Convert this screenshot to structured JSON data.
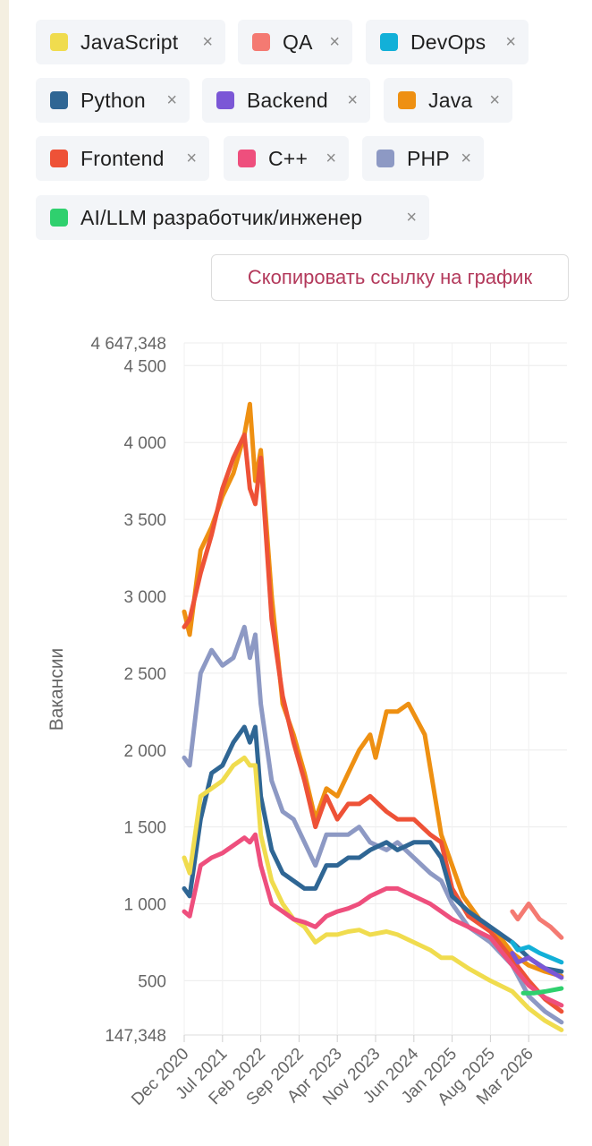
{
  "tags": [
    {
      "label": "JavaScript",
      "color": "#f0dc4e",
      "remove": "×"
    },
    {
      "label": "QA",
      "color": "#f47a72",
      "remove": "×"
    },
    {
      "label": "DevOps",
      "color": "#12b0d8",
      "remove": "×"
    },
    {
      "label": "Python",
      "color": "#2f6694",
      "remove": "×"
    },
    {
      "label": "Backend",
      "color": "#7b57d6",
      "remove": "×"
    },
    {
      "label": "Java",
      "color": "#ee9012",
      "remove": "×"
    },
    {
      "label": "Frontend",
      "color": "#ee5237",
      "remove": "×"
    },
    {
      "label": "C++",
      "color": "#ee4f7d",
      "remove": "×"
    },
    {
      "label": "PHP",
      "color": "#8d99c4",
      "remove": "×"
    },
    {
      "label": "AI/LLM разработчик/инженер",
      "color": "#2fd06e",
      "remove": "×"
    }
  ],
  "copy_button": "Скопировать ссылку на график",
  "chart_data": {
    "type": "line",
    "ylabel": "Вакансии",
    "ylim": [
      147.348,
      4647.348
    ],
    "y_ticks": [
      "147,348",
      "500",
      "1 000",
      "1 500",
      "2 000",
      "2 500",
      "3 000",
      "3 500",
      "4 000",
      "4 500",
      "4 647,348"
    ],
    "y_tick_values": [
      147.348,
      500,
      1000,
      1500,
      2000,
      2500,
      3000,
      3500,
      4000,
      4500,
      4647.348
    ],
    "x_ticks": [
      "Dec 2020",
      "Jul 2021",
      "Feb 2022",
      "Sep 2022",
      "Apr 2023",
      "Nov 2023",
      "Jun 2024",
      "Jan 2025",
      "Aug 2025",
      "Mar 2026"
    ],
    "x_range": [
      "2020-12",
      "2026-10"
    ],
    "grid": true,
    "series": [
      {
        "name": "Java",
        "color": "#ee9012",
        "start": "2020-12",
        "points": [
          [
            "2020-12",
            2900
          ],
          [
            "2021-01",
            2750
          ],
          [
            "2021-03",
            3300
          ],
          [
            "2021-05",
            3450
          ],
          [
            "2021-07",
            3650
          ],
          [
            "2021-09",
            3800
          ],
          [
            "2021-11",
            4050
          ],
          [
            "2021-12",
            4250
          ],
          [
            "2022-01",
            3750
          ],
          [
            "2022-02",
            3950
          ],
          [
            "2022-04",
            3000
          ],
          [
            "2022-06",
            2300
          ],
          [
            "2022-08",
            2100
          ],
          [
            "2022-10",
            1850
          ],
          [
            "2022-12",
            1550
          ],
          [
            "2023-02",
            1750
          ],
          [
            "2023-04",
            1700
          ],
          [
            "2023-06",
            1850
          ],
          [
            "2023-08",
            2000
          ],
          [
            "2023-10",
            2100
          ],
          [
            "2023-11",
            1950
          ],
          [
            "2024-01",
            2250
          ],
          [
            "2024-03",
            2250
          ],
          [
            "2024-05",
            2300
          ],
          [
            "2024-08",
            2100
          ],
          [
            "2024-11",
            1450
          ],
          [
            "2025-01",
            1250
          ],
          [
            "2025-03",
            1050
          ],
          [
            "2025-06",
            900
          ],
          [
            "2025-09",
            820
          ],
          [
            "2025-12",
            680
          ],
          [
            "2026-03",
            600
          ],
          [
            "2026-06",
            560
          ],
          [
            "2026-09",
            530
          ]
        ]
      },
      {
        "name": "Frontend",
        "color": "#ee5237",
        "start": "2020-12",
        "points": [
          [
            "2020-12",
            2800
          ],
          [
            "2021-01",
            2850
          ],
          [
            "2021-03",
            3150
          ],
          [
            "2021-05",
            3400
          ],
          [
            "2021-07",
            3700
          ],
          [
            "2021-09",
            3900
          ],
          [
            "2021-11",
            4050
          ],
          [
            "2021-12",
            3700
          ],
          [
            "2022-01",
            3600
          ],
          [
            "2022-02",
            3900
          ],
          [
            "2022-04",
            2850
          ],
          [
            "2022-06",
            2350
          ],
          [
            "2022-08",
            2050
          ],
          [
            "2022-10",
            1800
          ],
          [
            "2022-12",
            1500
          ],
          [
            "2023-02",
            1700
          ],
          [
            "2023-04",
            1550
          ],
          [
            "2023-06",
            1650
          ],
          [
            "2023-08",
            1650
          ],
          [
            "2023-10",
            1700
          ],
          [
            "2024-01",
            1600
          ],
          [
            "2024-03",
            1550
          ],
          [
            "2024-06",
            1550
          ],
          [
            "2024-09",
            1450
          ],
          [
            "2024-11",
            1400
          ],
          [
            "2025-01",
            1100
          ],
          [
            "2025-04",
            920
          ],
          [
            "2025-08",
            820
          ],
          [
            "2025-12",
            640
          ],
          [
            "2026-03",
            500
          ],
          [
            "2026-06",
            380
          ],
          [
            "2026-09",
            300
          ]
        ]
      },
      {
        "name": "PHP",
        "color": "#8d99c4",
        "start": "2020-12",
        "points": [
          [
            "2020-12",
            1950
          ],
          [
            "2021-01",
            1900
          ],
          [
            "2021-03",
            2500
          ],
          [
            "2021-05",
            2650
          ],
          [
            "2021-07",
            2550
          ],
          [
            "2021-09",
            2600
          ],
          [
            "2021-11",
            2800
          ],
          [
            "2021-12",
            2600
          ],
          [
            "2022-01",
            2750
          ],
          [
            "2022-02",
            2300
          ],
          [
            "2022-04",
            1800
          ],
          [
            "2022-06",
            1600
          ],
          [
            "2022-08",
            1550
          ],
          [
            "2022-10",
            1400
          ],
          [
            "2022-12",
            1250
          ],
          [
            "2023-02",
            1450
          ],
          [
            "2023-04",
            1450
          ],
          [
            "2023-06",
            1450
          ],
          [
            "2023-08",
            1500
          ],
          [
            "2023-10",
            1400
          ],
          [
            "2024-01",
            1350
          ],
          [
            "2024-03",
            1400
          ],
          [
            "2024-06",
            1300
          ],
          [
            "2024-09",
            1200
          ],
          [
            "2024-11",
            1150
          ],
          [
            "2025-01",
            1000
          ],
          [
            "2025-04",
            850
          ],
          [
            "2025-08",
            750
          ],
          [
            "2025-12",
            600
          ],
          [
            "2026-03",
            400
          ],
          [
            "2026-06",
            300
          ],
          [
            "2026-09",
            230
          ]
        ]
      },
      {
        "name": "Python",
        "color": "#2f6694",
        "start": "2020-12",
        "points": [
          [
            "2020-12",
            1100
          ],
          [
            "2021-01",
            1050
          ],
          [
            "2021-03",
            1550
          ],
          [
            "2021-05",
            1850
          ],
          [
            "2021-07",
            1900
          ],
          [
            "2021-09",
            2050
          ],
          [
            "2021-11",
            2150
          ],
          [
            "2021-12",
            2050
          ],
          [
            "2022-01",
            2150
          ],
          [
            "2022-02",
            1700
          ],
          [
            "2022-04",
            1350
          ],
          [
            "2022-06",
            1200
          ],
          [
            "2022-08",
            1150
          ],
          [
            "2022-10",
            1100
          ],
          [
            "2022-12",
            1100
          ],
          [
            "2023-02",
            1250
          ],
          [
            "2023-04",
            1250
          ],
          [
            "2023-06",
            1300
          ],
          [
            "2023-08",
            1300
          ],
          [
            "2023-10",
            1350
          ],
          [
            "2024-01",
            1400
          ],
          [
            "2024-03",
            1350
          ],
          [
            "2024-06",
            1400
          ],
          [
            "2024-09",
            1400
          ],
          [
            "2024-11",
            1300
          ],
          [
            "2025-01",
            1050
          ],
          [
            "2025-04",
            950
          ],
          [
            "2025-08",
            850
          ],
          [
            "2025-12",
            750
          ],
          [
            "2026-03",
            650
          ],
          [
            "2026-06",
            580
          ],
          [
            "2026-09",
            560
          ]
        ]
      },
      {
        "name": "JavaScript",
        "color": "#f0dc4e",
        "start": "2020-12",
        "points": [
          [
            "2020-12",
            1300
          ],
          [
            "2021-01",
            1200
          ],
          [
            "2021-03",
            1700
          ],
          [
            "2021-05",
            1750
          ],
          [
            "2021-07",
            1800
          ],
          [
            "2021-09",
            1900
          ],
          [
            "2021-11",
            1950
          ],
          [
            "2021-12",
            1900
          ],
          [
            "2022-01",
            1900
          ],
          [
            "2022-02",
            1450
          ],
          [
            "2022-04",
            1150
          ],
          [
            "2022-06",
            1000
          ],
          [
            "2022-08",
            900
          ],
          [
            "2022-10",
            850
          ],
          [
            "2022-12",
            750
          ],
          [
            "2023-02",
            800
          ],
          [
            "2023-04",
            800
          ],
          [
            "2023-06",
            820
          ],
          [
            "2023-08",
            830
          ],
          [
            "2023-10",
            800
          ],
          [
            "2024-01",
            820
          ],
          [
            "2024-03",
            800
          ],
          [
            "2024-06",
            750
          ],
          [
            "2024-09",
            700
          ],
          [
            "2024-11",
            650
          ],
          [
            "2025-01",
            650
          ],
          [
            "2025-04",
            580
          ],
          [
            "2025-08",
            500
          ],
          [
            "2025-12",
            430
          ],
          [
            "2026-03",
            320
          ],
          [
            "2026-06",
            240
          ],
          [
            "2026-09",
            180
          ]
        ]
      },
      {
        "name": "C++",
        "color": "#ee4f7d",
        "start": "2020-12",
        "points": [
          [
            "2020-12",
            950
          ],
          [
            "2021-01",
            920
          ],
          [
            "2021-03",
            1250
          ],
          [
            "2021-05",
            1300
          ],
          [
            "2021-07",
            1330
          ],
          [
            "2021-09",
            1380
          ],
          [
            "2021-11",
            1430
          ],
          [
            "2021-12",
            1400
          ],
          [
            "2022-01",
            1450
          ],
          [
            "2022-02",
            1250
          ],
          [
            "2022-04",
            1000
          ],
          [
            "2022-06",
            950
          ],
          [
            "2022-08",
            900
          ],
          [
            "2022-10",
            880
          ],
          [
            "2022-12",
            850
          ],
          [
            "2023-02",
            920
          ],
          [
            "2023-04",
            950
          ],
          [
            "2023-06",
            970
          ],
          [
            "2023-08",
            1000
          ],
          [
            "2023-10",
            1050
          ],
          [
            "2024-01",
            1100
          ],
          [
            "2024-03",
            1100
          ],
          [
            "2024-06",
            1050
          ],
          [
            "2024-09",
            1000
          ],
          [
            "2024-11",
            950
          ],
          [
            "2025-01",
            900
          ],
          [
            "2025-04",
            850
          ],
          [
            "2025-08",
            780
          ],
          [
            "2025-12",
            600
          ],
          [
            "2026-03",
            470
          ],
          [
            "2026-06",
            390
          ],
          [
            "2026-09",
            340
          ]
        ]
      },
      {
        "name": "QA",
        "color": "#f47a72",
        "start": "2025-12",
        "points": [
          [
            "2025-12",
            950
          ],
          [
            "2026-01",
            900
          ],
          [
            "2026-03",
            1000
          ],
          [
            "2026-05",
            900
          ],
          [
            "2026-07",
            850
          ],
          [
            "2026-09",
            780
          ]
        ]
      },
      {
        "name": "DevOps",
        "color": "#12b0d8",
        "start": "2025-12",
        "points": [
          [
            "2025-12",
            750
          ],
          [
            "2026-01",
            700
          ],
          [
            "2026-03",
            720
          ],
          [
            "2026-05",
            680
          ],
          [
            "2026-07",
            650
          ],
          [
            "2026-09",
            620
          ]
        ]
      },
      {
        "name": "Backend",
        "color": "#7b57d6",
        "start": "2025-12",
        "points": [
          [
            "2025-12",
            680
          ],
          [
            "2026-01",
            620
          ],
          [
            "2026-03",
            650
          ],
          [
            "2026-05",
            600
          ],
          [
            "2026-07",
            560
          ],
          [
            "2026-09",
            520
          ]
        ]
      },
      {
        "name": "AI/LLM разработчик/инженер",
        "color": "#2fd06e",
        "start": "2026-02",
        "points": [
          [
            "2026-02",
            420
          ],
          [
            "2026-04",
            420
          ],
          [
            "2026-06",
            430
          ],
          [
            "2026-09",
            450
          ]
        ]
      }
    ]
  }
}
